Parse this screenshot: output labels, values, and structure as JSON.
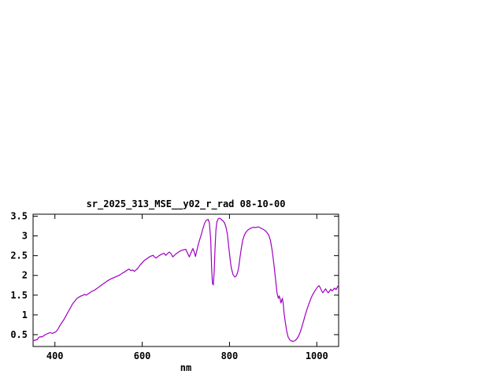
{
  "page": {
    "background_color": "#ffffff"
  },
  "chart_data": {
    "type": "line",
    "title": "sr_2025_313_MSE__y02_r_rad 08-10-00",
    "xlabel": "nm",
    "ylabel": "",
    "xlim": [
      350,
      1050
    ],
    "ylim": [
      0.2,
      3.55
    ],
    "x_ticks": [
      400,
      600,
      800,
      1000
    ],
    "y_ticks": [
      0.5,
      1,
      1.5,
      2,
      2.5,
      3,
      3.5
    ],
    "grid": false,
    "legend_position": "none",
    "line_color": "#a000c0",
    "axis_color": "#000000",
    "series": [
      {
        "name": "sr_2025_313_MSE__y02_r_rad",
        "x": [
          350,
          355,
          360,
          363,
          366,
          370,
          374,
          378,
          382,
          386,
          390,
          394,
          398,
          402,
          406,
          410,
          415,
          420,
          425,
          430,
          435,
          440,
          445,
          450,
          455,
          460,
          465,
          468,
          472,
          476,
          480,
          485,
          490,
          495,
          500,
          505,
          510,
          515,
          520,
          525,
          530,
          535,
          540,
          545,
          550,
          555,
          560,
          565,
          570,
          574,
          578,
          582,
          586,
          590,
          595,
          600,
          605,
          610,
          615,
          620,
          625,
          628,
          632,
          636,
          640,
          645,
          650,
          654,
          658,
          662,
          666,
          670,
          674,
          678,
          682,
          686,
          690,
          695,
          700,
          704,
          708,
          712,
          716,
          719,
          722,
          725,
          728,
          731,
          735,
          739,
          743,
          747,
          751,
          754,
          757,
          759,
          761,
          763,
          765,
          767,
          769,
          771,
          774,
          777,
          780,
          783,
          786,
          789,
          792,
          795,
          798,
          801,
          804,
          808,
          812,
          815,
          818,
          821,
          824,
          827,
          830,
          834,
          838,
          842,
          846,
          850,
          855,
          860,
          865,
          870,
          875,
          880,
          885,
          890,
          894,
          898,
          902,
          906,
          909,
          912,
          914,
          916,
          918,
          921,
          923,
          925,
          928,
          931,
          934,
          938,
          942,
          946,
          950,
          954,
          958,
          962,
          966,
          970,
          974,
          978,
          982,
          986,
          990,
          994,
          998,
          1002,
          1005,
          1008,
          1011,
          1014,
          1017,
          1020,
          1023,
          1026,
          1029,
          1032,
          1035,
          1038,
          1041,
          1044,
          1047,
          1050
        ],
        "y": [
          0.35,
          0.36,
          0.38,
          0.43,
          0.45,
          0.44,
          0.47,
          0.5,
          0.52,
          0.54,
          0.55,
          0.53,
          0.55,
          0.57,
          0.62,
          0.7,
          0.79,
          0.87,
          0.97,
          1.07,
          1.17,
          1.27,
          1.34,
          1.41,
          1.45,
          1.48,
          1.5,
          1.52,
          1.5,
          1.53,
          1.56,
          1.6,
          1.62,
          1.66,
          1.7,
          1.74,
          1.78,
          1.82,
          1.86,
          1.89,
          1.92,
          1.94,
          1.97,
          1.99,
          2.02,
          2.06,
          2.09,
          2.13,
          2.16,
          2.12,
          2.14,
          2.1,
          2.14,
          2.18,
          2.26,
          2.32,
          2.38,
          2.42,
          2.46,
          2.49,
          2.51,
          2.47,
          2.44,
          2.48,
          2.51,
          2.54,
          2.56,
          2.51,
          2.55,
          2.59,
          2.55,
          2.47,
          2.51,
          2.55,
          2.58,
          2.61,
          2.63,
          2.65,
          2.66,
          2.56,
          2.47,
          2.58,
          2.68,
          2.6,
          2.48,
          2.62,
          2.76,
          2.88,
          3.02,
          3.18,
          3.32,
          3.4,
          3.42,
          3.33,
          2.9,
          2.2,
          1.8,
          1.76,
          2.1,
          2.7,
          3.15,
          3.35,
          3.43,
          3.45,
          3.43,
          3.4,
          3.37,
          3.32,
          3.22,
          3.05,
          2.75,
          2.45,
          2.2,
          2.02,
          1.96,
          1.98,
          2.05,
          2.2,
          2.45,
          2.68,
          2.88,
          3.02,
          3.1,
          3.15,
          3.18,
          3.2,
          3.22,
          3.21,
          3.23,
          3.21,
          3.18,
          3.15,
          3.1,
          3.02,
          2.88,
          2.62,
          2.25,
          1.85,
          1.55,
          1.42,
          1.48,
          1.4,
          1.3,
          1.42,
          1.3,
          1.05,
          0.8,
          0.6,
          0.45,
          0.37,
          0.34,
          0.33,
          0.35,
          0.39,
          0.46,
          0.56,
          0.7,
          0.86,
          1.02,
          1.16,
          1.28,
          1.4,
          1.5,
          1.58,
          1.65,
          1.71,
          1.74,
          1.69,
          1.61,
          1.56,
          1.61,
          1.66,
          1.61,
          1.56,
          1.6,
          1.65,
          1.61,
          1.64,
          1.68,
          1.64,
          1.7,
          1.76
        ]
      }
    ]
  }
}
